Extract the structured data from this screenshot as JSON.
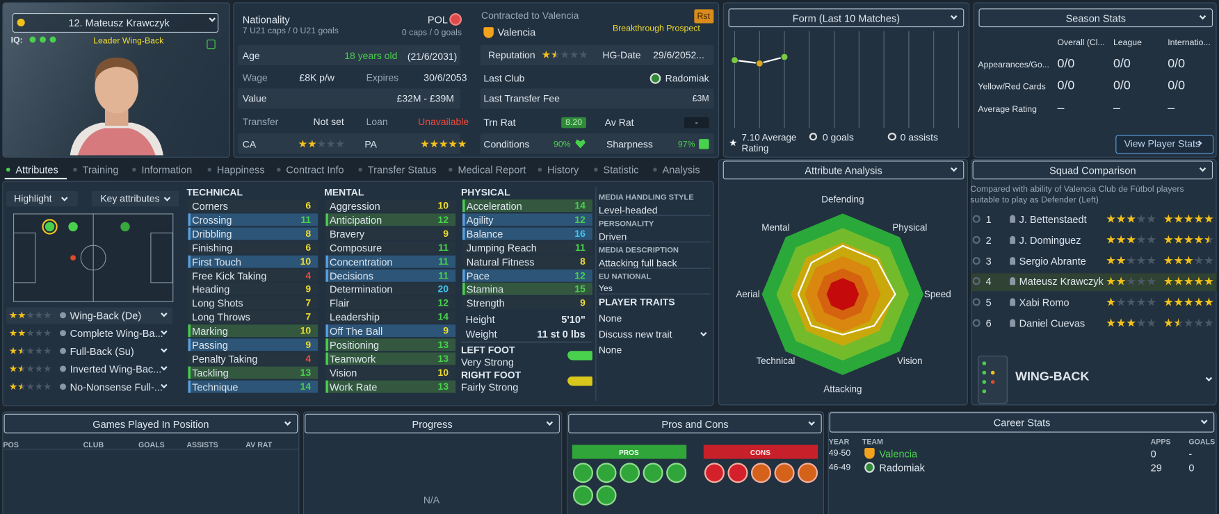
{
  "player": {
    "name": "12. Mateusz Krawczyk",
    "iq_label": "IQ:",
    "role": "Leader Wing-Back"
  },
  "info": {
    "nationality_label": "Nationality",
    "nationality": "POL",
    "u21": "7 U21 caps / 0 U21 goals",
    "caps": "0 caps / 0 goals",
    "age_label": "Age",
    "age": "18 years old",
    "dob": "(21/6/2031)",
    "wage_label": "Wage",
    "wage": "£8K p/w",
    "expires_label": "Expires",
    "expires": "30/6/2053",
    "value_label": "Value",
    "value": "£32M - £39M",
    "transfer_label": "Transfer",
    "transfer": "Not set",
    "loan_label": "Loan",
    "loan": "Unavailable",
    "ca_label": "CA",
    "ca_stars": 2,
    "pa_label": "PA",
    "pa_stars": 5
  },
  "contract": {
    "contracted": "Contracted to Valencia",
    "badge": "Rst",
    "club": "Valencia",
    "prospect": "Breakthrough Prospect",
    "reputation_label": "Reputation",
    "reputation_stars": 1.5,
    "hg_label": "HG-Date",
    "hg": "29/6/2052...",
    "last_club_label": "Last Club",
    "last_club": "Radomiak",
    "fee_label": "Last Transfer Fee",
    "fee": "£3M",
    "trn_label": "Trn Rat",
    "trn": "8.20",
    "av_label": "Av Rat",
    "av": "-",
    "conditions_label": "Conditions",
    "conditions": "90%",
    "sharpness_label": "Sharpness",
    "sharpness": "97%"
  },
  "form": {
    "title": "Form (Last 10 Matches)",
    "ratings": [
      7.1,
      7.0,
      7.2
    ],
    "ylim": [
      5,
      8
    ],
    "matches": 10,
    "avg": "7.10 Average Rating",
    "goals": "0 goals",
    "assists": "0 assists"
  },
  "season": {
    "title": "Season Stats",
    "columns": [
      "Overall (Cl...",
      "League",
      "Internatio..."
    ],
    "rows": [
      {
        "label": "Appearances/Go...",
        "values": [
          "0/0",
          "0/0",
          "0/0"
        ]
      },
      {
        "label": "Yellow/Red Cards",
        "values": [
          "0/0",
          "0/0",
          "0/0"
        ]
      },
      {
        "label": "Average Rating",
        "values": [
          "–",
          "–",
          "–"
        ]
      }
    ],
    "button": "View Player Stats"
  },
  "tabs": [
    "Attributes",
    "Training",
    "Information",
    "Happiness",
    "Contract Info",
    "Transfer Status",
    "Medical Report",
    "History",
    "Statistic",
    "Analysis"
  ],
  "highlight": "Highlight",
  "key_attributes": "Key attributes",
  "roles": [
    {
      "name": "Wing-Back (De)",
      "stars": 2
    },
    {
      "name": "Complete Wing-Ba...",
      "stars": 2
    },
    {
      "name": "Full-Back (Su)",
      "stars": 1.5
    },
    {
      "name": "Inverted Wing-Bac...",
      "stars": 1.5
    },
    {
      "name": "No-Nonsense Full-...",
      "stars": 1.5
    }
  ],
  "technical": {
    "title": "TECHNICAL",
    "rows": [
      {
        "name": "Corners",
        "value": 6
      },
      {
        "name": "Crossing",
        "value": 11,
        "hl": "blue"
      },
      {
        "name": "Dribbling",
        "value": 8,
        "hl": "blue"
      },
      {
        "name": "Finishing",
        "value": 6
      },
      {
        "name": "First Touch",
        "value": 10,
        "hl": "blue"
      },
      {
        "name": "Free Kick Taking",
        "value": 4
      },
      {
        "name": "Heading",
        "value": 9
      },
      {
        "name": "Long Shots",
        "value": 7
      },
      {
        "name": "Long Throws",
        "value": 7
      },
      {
        "name": "Marking",
        "value": 10,
        "hl": "green"
      },
      {
        "name": "Passing",
        "value": 9,
        "hl": "blue"
      },
      {
        "name": "Penalty Taking",
        "value": 4
      },
      {
        "name": "Tackling",
        "value": 13,
        "hl": "green"
      },
      {
        "name": "Technique",
        "value": 14,
        "hl": "blue"
      }
    ]
  },
  "mental": {
    "title": "MENTAL",
    "rows": [
      {
        "name": "Aggression",
        "value": 10
      },
      {
        "name": "Anticipation",
        "value": 12,
        "hl": "green"
      },
      {
        "name": "Bravery",
        "value": 9
      },
      {
        "name": "Composure",
        "value": 11
      },
      {
        "name": "Concentration",
        "value": 11,
        "hl": "blue"
      },
      {
        "name": "Decisions",
        "value": 11,
        "hl": "blue"
      },
      {
        "name": "Determination",
        "value": 20
      },
      {
        "name": "Flair",
        "value": 12
      },
      {
        "name": "Leadership",
        "value": 14
      },
      {
        "name": "Off The Ball",
        "value": 9,
        "hl": "blue"
      },
      {
        "name": "Positioning",
        "value": 13,
        "hl": "green"
      },
      {
        "name": "Teamwork",
        "value": 13,
        "hl": "green"
      },
      {
        "name": "Vision",
        "value": 10
      },
      {
        "name": "Work Rate",
        "value": 13,
        "hl": "green"
      }
    ]
  },
  "physical": {
    "title": "PHYSICAL",
    "rows": [
      {
        "name": "Acceleration",
        "value": 14,
        "hl": "green"
      },
      {
        "name": "Agility",
        "value": 12,
        "hl": "blue"
      },
      {
        "name": "Balance",
        "value": 16,
        "hl": "blue"
      },
      {
        "name": "Jumping Reach",
        "value": 11
      },
      {
        "name": "Natural Fitness",
        "value": 8
      },
      {
        "name": "Pace",
        "value": 12,
        "hl": "blue"
      },
      {
        "name": "Stamina",
        "value": 15,
        "hl": "green"
      },
      {
        "name": "Strength",
        "value": 9
      }
    ],
    "height_label": "Height",
    "height": "5'10\"",
    "weight_label": "Weight",
    "weight": "11 st 0 lbs",
    "left_foot_label": "LEFT FOOT",
    "left_foot": "Very Strong",
    "right_foot_label": "RIGHT FOOT",
    "right_foot": "Fairly Strong"
  },
  "profile": {
    "media_style_label": "MEDIA HANDLING STYLE",
    "media_style": "Level-headed",
    "personality_label": "PERSONALITY",
    "personality": "Driven",
    "media_description_label": "MEDIA DESCRIPTION",
    "media_description": "Attacking full back",
    "eu_label": "EU NATIONAL",
    "eu": "Yes",
    "traits_label": "PLAYER TRAITS",
    "traits": "None",
    "discuss": "Discuss new trait",
    "discuss_value": "None"
  },
  "attribute_analysis": {
    "title": "Attribute Analysis",
    "categories": [
      "Defending",
      "Physical",
      "Speed",
      "Vision",
      "Attacking",
      "Technical",
      "Aerial",
      "Mental"
    ],
    "values": [
      12,
      12,
      13,
      11,
      10,
      11,
      11,
      11
    ],
    "rlim": [
      0,
      20
    ]
  },
  "squad": {
    "title": "Squad Comparison",
    "note": "Compared with ability of Valencia Club de Fútbol players suitable to play as Defender (Left)",
    "rows": [
      {
        "rank": 1,
        "name": "J. Bettenstaedt",
        "current": 3,
        "potential": 5
      },
      {
        "rank": 2,
        "name": "J. Dominguez",
        "current": 3,
        "potential": 4.5
      },
      {
        "rank": 3,
        "name": "Sergio Abrante",
        "current": 2,
        "potential": 3
      },
      {
        "rank": 4,
        "name": "Mateusz Krawczyk",
        "current": 2,
        "potential": 5
      },
      {
        "rank": 5,
        "name": "Xabi Romo",
        "current": 1,
        "potential": 5
      },
      {
        "rank": 6,
        "name": "Daniel Cuevas",
        "current": 3,
        "potential": 1.5
      }
    ],
    "position": "WING-BACK"
  },
  "games": {
    "title": "Games Played In Position",
    "columns": [
      "POS",
      "CLUB",
      "GOALS",
      "ASSISTS",
      "AV RAT"
    ]
  },
  "progress": {
    "title": "Progress",
    "empty": "N/A"
  },
  "pros_cons": {
    "title": "Pros and Cons",
    "pros": "PROS",
    "cons": "CONS"
  },
  "career": {
    "title": "Career Stats",
    "columns": [
      "YEAR",
      "TEAM",
      "APPS",
      "GOALS"
    ],
    "rows": [
      {
        "year": "49-50",
        "team": "Valencia",
        "apps": 0,
        "goals": "-"
      },
      {
        "year": "46-49",
        "team": "Radomiak",
        "apps": 29,
        "goals": 0
      }
    ]
  }
}
